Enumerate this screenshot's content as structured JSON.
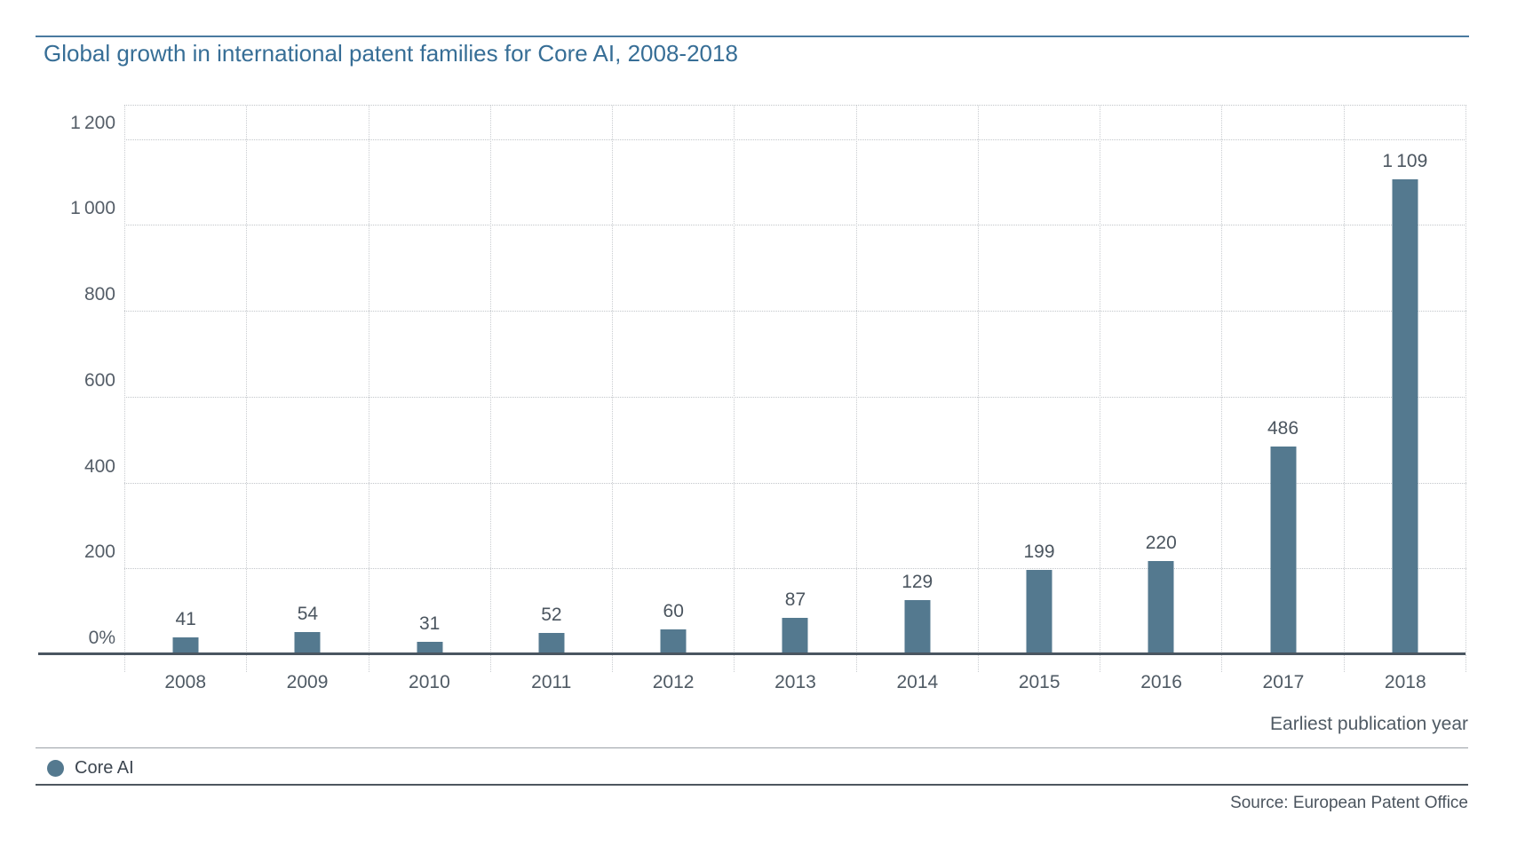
{
  "page": {
    "title": "Global growth in international patent families for Core AI, 2008-2018",
    "source": "Source: European Patent Office"
  },
  "chart_data": {
    "type": "bar",
    "title": "Global growth in international patent families for Core AI, 2008-2018",
    "categories": [
      "2008",
      "2009",
      "2010",
      "2011",
      "2012",
      "2013",
      "2014",
      "2015",
      "2016",
      "2017",
      "2018"
    ],
    "values": [
      41,
      54,
      31,
      52,
      60,
      87,
      129,
      199,
      220,
      486,
      1109
    ],
    "value_labels": [
      "41",
      "54",
      "31",
      "52",
      "60",
      "87",
      "129",
      "199",
      "220",
      "486",
      "1 109"
    ],
    "series_name": "Core AI",
    "xlabel": "Earliest publication year",
    "ylabel": "",
    "ylim": [
      0,
      1280
    ],
    "yticks": [
      {
        "value": 0,
        "label": "0%"
      },
      {
        "value": 200,
        "label": "200"
      },
      {
        "value": 400,
        "label": "400"
      },
      {
        "value": 600,
        "label": "600"
      },
      {
        "value": 800,
        "label": "800"
      },
      {
        "value": 1000,
        "label": "1 000"
      },
      {
        "value": 1200,
        "label": "1 200"
      }
    ],
    "grid": "dotted",
    "legend": {
      "position": "bottom-left",
      "entries": [
        {
          "label": "Core AI",
          "color": "#54798f"
        }
      ]
    },
    "bar_color": "#54798f",
    "accent_color": "#376e96"
  }
}
